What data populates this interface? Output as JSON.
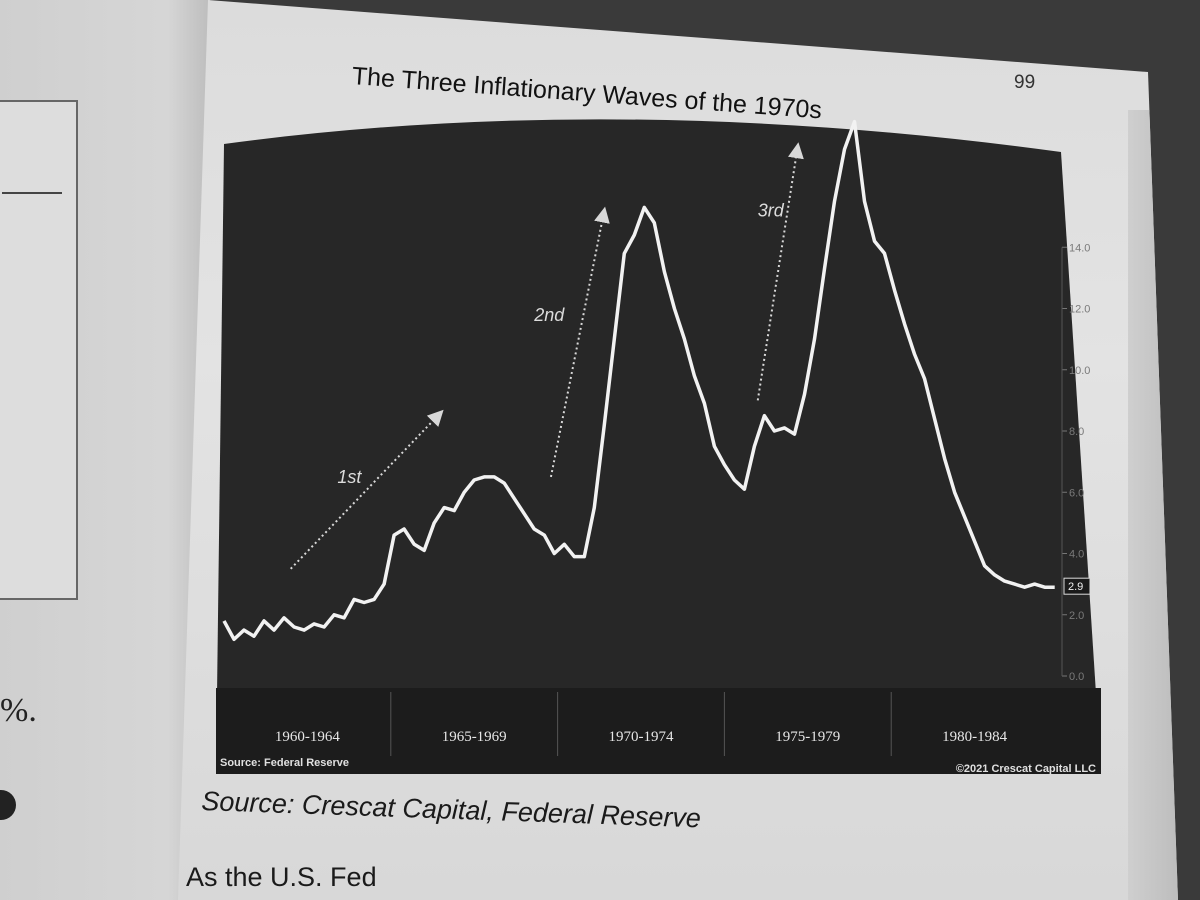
{
  "page": {
    "title": "The Three Inflationary Waves of the 1970s",
    "page_number": "99",
    "caption": "Source: Crescat Capital, Federal Reserve",
    "bottom_text": "As the U.S. Fed",
    "left_text": "%."
  },
  "chart_data": {
    "type": "line",
    "title": "",
    "xlabel": "",
    "ylabel": "",
    "ylim": [
      0,
      16
    ],
    "xlim": [
      1960,
      1985
    ],
    "y_ticks": [
      "0.0",
      "2.0",
      "4.0",
      "6.0",
      "8.0",
      "10.0",
      "12.0",
      "14.0"
    ],
    "y_tick_values": [
      0,
      2,
      4,
      6,
      8,
      10,
      12,
      14
    ],
    "grid": false,
    "background_color": "#2a2a2a",
    "line_color": "#f2f2f2",
    "periods": [
      {
        "label": "1960-1964",
        "start": 1960,
        "end": 1965
      },
      {
        "label": "1965-1969",
        "start": 1965,
        "end": 1970
      },
      {
        "label": "1970-1974",
        "start": 1970,
        "end": 1975
      },
      {
        "label": "1975-1979",
        "start": 1975,
        "end": 1980
      },
      {
        "label": "1980-1984",
        "start": 1980,
        "end": 1985
      }
    ],
    "last_value_label": "2.9",
    "source_left": "Source: Federal Reserve",
    "source_right": "©2021 Crescat Capital LLC",
    "annotations": [
      {
        "label": "1st",
        "from": [
          1962.0,
          3.5
        ],
        "to": [
          1966.5,
          8.6
        ],
        "text_at": [
          1963.4,
          6.3
        ]
      },
      {
        "label": "2nd",
        "from": [
          1969.8,
          6.5
        ],
        "to": [
          1971.4,
          15.2
        ],
        "text_at": [
          1969.3,
          11.6
        ]
      },
      {
        "label": "3rd",
        "from": [
          1976.0,
          9.0
        ],
        "to": [
          1977.2,
          17.3
        ],
        "text_at": [
          1976.0,
          15.0
        ]
      }
    ],
    "series": [
      {
        "x": [
          1960.0,
          1960.3,
          1960.6,
          1960.9,
          1961.2,
          1961.5,
          1961.8,
          1962.1,
          1962.4,
          1962.7,
          1963.0,
          1963.3,
          1963.6,
          1963.9,
          1964.2,
          1964.5,
          1964.8,
          1965.1,
          1965.4,
          1965.7,
          1966.0,
          1966.3,
          1966.6,
          1966.9,
          1967.2,
          1967.5,
          1967.8,
          1968.1,
          1968.4,
          1968.7,
          1969.0,
          1969.3,
          1969.6,
          1969.9,
          1970.2,
          1970.5,
          1970.8,
          1971.1,
          1971.4,
          1971.7,
          1972.0,
          1972.3,
          1972.6,
          1972.9,
          1973.2,
          1973.5,
          1973.8,
          1974.1,
          1974.4,
          1974.7,
          1975.0,
          1975.3,
          1975.6,
          1975.9,
          1976.2,
          1976.5,
          1976.8,
          1977.1,
          1977.4,
          1977.7,
          1978.0,
          1978.3,
          1978.6,
          1978.9,
          1979.2,
          1979.5,
          1979.8,
          1980.1,
          1980.4,
          1980.7,
          1981.0,
          1981.3,
          1981.6,
          1981.9,
          1982.2,
          1982.5,
          1982.8,
          1983.1,
          1983.4,
          1983.7,
          1984.0,
          1984.3,
          1984.6,
          1984.9
        ],
        "y": [
          1.8,
          1.2,
          1.5,
          1.3,
          1.8,
          1.5,
          1.9,
          1.6,
          1.5,
          1.7,
          1.6,
          2.0,
          1.9,
          2.5,
          2.4,
          2.5,
          3.0,
          4.6,
          4.8,
          4.3,
          4.1,
          5.0,
          5.5,
          5.4,
          6.0,
          6.4,
          6.5,
          6.5,
          6.3,
          5.8,
          5.3,
          4.8,
          4.6,
          4.0,
          4.3,
          3.9,
          3.9,
          5.5,
          8.2,
          11.0,
          13.8,
          14.4,
          15.3,
          14.8,
          13.2,
          12.0,
          11.0,
          9.8,
          8.9,
          7.5,
          6.9,
          6.4,
          6.1,
          7.5,
          8.5,
          8.0,
          8.1,
          7.9,
          9.2,
          11.0,
          13.3,
          15.5,
          17.2,
          18.1,
          15.5,
          14.2,
          13.8,
          12.6,
          11.5,
          10.5,
          9.7,
          8.4,
          7.1,
          6.0,
          5.2,
          4.4,
          3.6,
          3.3,
          3.1,
          3.0,
          2.9,
          3.0,
          2.9,
          2.9
        ]
      }
    ]
  }
}
